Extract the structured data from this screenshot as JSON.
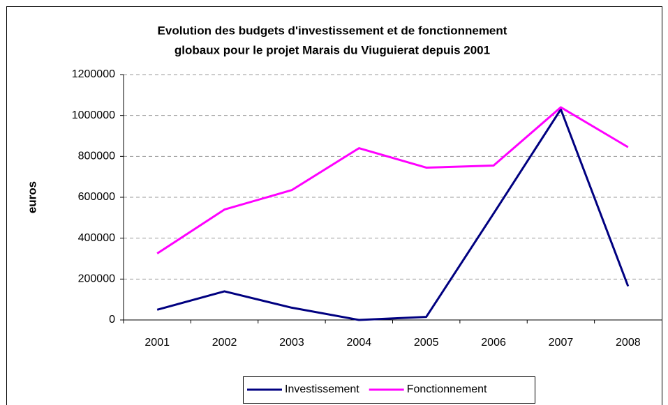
{
  "chart_data": {
    "type": "line",
    "title": [
      "Evolution des budgets d'investissement et de fonctionnement",
      "globaux pour le projet Marais du Viuguierat depuis 2001"
    ],
    "y_label": "euros",
    "categories": [
      "2001",
      "2002",
      "2003",
      "2004",
      "2005",
      "2006",
      "2007",
      "2008"
    ],
    "series": [
      {
        "name": "Investissement",
        "color": "#000080",
        "values": [
          50000,
          140000,
          60000,
          0,
          15000,
          520000,
          1030000,
          165000
        ]
      },
      {
        "name": "Fonctionnement",
        "color": "#ff00ff",
        "values": [
          325000,
          540000,
          635000,
          840000,
          745000,
          755000,
          1040000,
          845000
        ]
      }
    ],
    "ylim": [
      0,
      1200000
    ],
    "yticks": [
      0,
      200000,
      400000,
      600000,
      800000,
      1000000,
      1200000
    ],
    "grid": true,
    "legend": "bottom"
  }
}
